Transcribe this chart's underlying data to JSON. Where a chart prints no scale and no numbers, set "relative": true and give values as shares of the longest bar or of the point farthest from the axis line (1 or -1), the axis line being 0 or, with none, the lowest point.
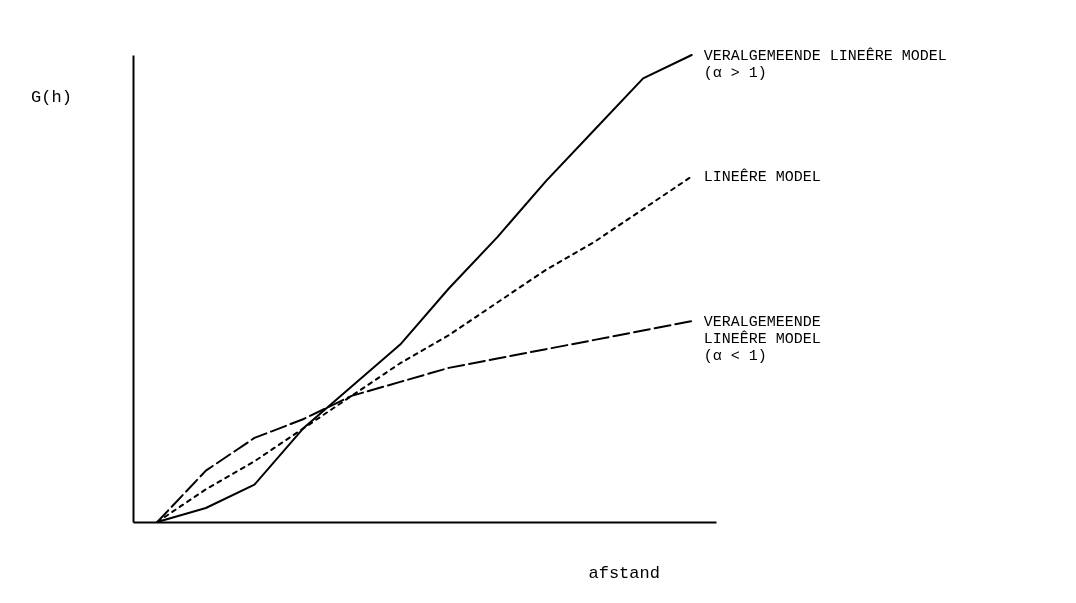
{
  "chart_data": {
    "type": "line",
    "relative": true,
    "xlabel": "afstand",
    "ylabel": "G(h)",
    "categories": [
      null,
      null,
      null,
      null,
      null,
      null,
      null,
      null,
      null,
      null,
      null,
      null
    ],
    "series": [
      {
        "name": "VERALGEMEENDE LINEÊRE MODEL\n(α > 1)",
        "color": "#000000",
        "line_style": "solid",
        "values": [
          0,
          0.03,
          0.08,
          0.2,
          0.29,
          0.38,
          0.5,
          0.61,
          0.73,
          0.84,
          0.95,
          1
        ]
      },
      {
        "name": "LINEÊRE MODEL",
        "color": "#000000",
        "line_style": "dotted",
        "values": [
          0,
          0.07,
          0.13,
          0.2,
          0.27,
          0.34,
          0.4,
          0.47,
          0.54,
          0.6,
          0.67,
          0.74
        ]
      },
      {
        "name": "VERALGEMEENDE\nLINEÊRE MODEL\n(α < 1)",
        "color": "#000000",
        "line_style": "dashed",
        "values": [
          0,
          0.11,
          0.18,
          0.22,
          0.27,
          0.3,
          0.33,
          0.35,
          0.37,
          0.39,
          0.41,
          0.43
        ]
      }
    ]
  }
}
